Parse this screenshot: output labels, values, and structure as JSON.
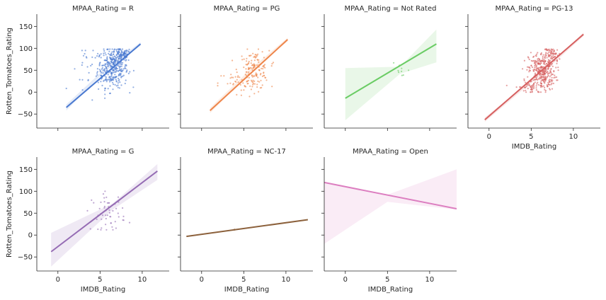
{
  "chart_data": {
    "type": "scatter",
    "facet_variable": "MPAA_Rating",
    "xlabel": "IMDB_Rating",
    "ylabel": "Rotten_Tomatoes_Rating",
    "xlim": [
      -2.5,
      13.2
    ],
    "ylim": [
      -82,
      178
    ],
    "xticks": [
      0,
      5,
      10
    ],
    "yticks": [
      -50,
      0,
      50,
      100,
      150
    ],
    "grid": false,
    "panels": [
      {
        "title": "MPAA_Rating = R",
        "color": "#4878d0",
        "fit": {
          "x": [
            1.0,
            9.8
          ],
          "y": [
            -35,
            110
          ]
        },
        "band": {
          "x": [
            1.0,
            5.5,
            9.8
          ],
          "upper": [
            -28,
            52,
            114
          ],
          "lower": [
            -42,
            46,
            106
          ]
        },
        "clusters": [
          {
            "cx": 6.5,
            "cy": 55,
            "sx": 0.9,
            "sy": 22,
            "n": 320,
            "xr": [
              3,
              9.5
            ],
            "yr": [
              -5,
              98
            ]
          },
          {
            "cx": 7.5,
            "cy": 85,
            "sx": 0.6,
            "sy": 8,
            "n": 90,
            "xr": [
              5.5,
              9.5
            ],
            "yr": [
              60,
              98
            ]
          },
          {
            "cx": 3.8,
            "cy": 40,
            "sx": 1.2,
            "sy": 35,
            "n": 30,
            "xr": [
              1.0,
              6
            ],
            "yr": [
              -35,
              95
            ]
          }
        ]
      },
      {
        "title": "MPAA_Rating = PG",
        "color": "#ee854a",
        "fit": {
          "x": [
            1.0,
            10.2
          ],
          "y": [
            -42,
            120
          ]
        },
        "band": {
          "x": [
            1.0,
            6.0,
            10.2
          ],
          "upper": [
            -36,
            56,
            124
          ],
          "lower": [
            -48,
            50,
            116
          ]
        },
        "clusters": [
          {
            "cx": 6.2,
            "cy": 50,
            "sx": 0.9,
            "sy": 22,
            "n": 150,
            "xr": [
              2.5,
              8.5
            ],
            "yr": [
              -10,
              98
            ]
          },
          {
            "cx": 4.0,
            "cy": 20,
            "sx": 1.0,
            "sy": 15,
            "n": 25,
            "xr": [
              1.8,
              6
            ],
            "yr": [
              -10,
              55
            ]
          }
        ]
      },
      {
        "title": "MPAA_Rating = Not Rated",
        "color": "#6acc64",
        "fit": {
          "x": [
            0.0,
            10.8
          ],
          "y": [
            -14,
            110
          ]
        },
        "band": {
          "x": [
            0.0,
            6.5,
            10.8
          ],
          "upper": [
            55,
            58,
            143
          ],
          "lower": [
            -64,
            42,
            68
          ]
        },
        "clusters": [
          {
            "cx": 6.5,
            "cy": 50,
            "sx": 0.7,
            "sy": 20,
            "n": 10,
            "xr": [
              5.0,
              7.5
            ],
            "yr": [
              15,
              85
            ]
          }
        ]
      },
      {
        "title": "MPAA_Rating = PG-13",
        "color": "#d65f5f",
        "fit": {
          "x": [
            -0.5,
            11.2
          ],
          "y": [
            -63,
            132
          ]
        },
        "band": {
          "x": [
            -0.5,
            6.5,
            11.2
          ],
          "upper": [
            -58,
            50,
            136
          ],
          "lower": [
            -68,
            46,
            128
          ]
        },
        "clusters": [
          {
            "cx": 6.3,
            "cy": 48,
            "sx": 0.8,
            "sy": 22,
            "n": 340,
            "xr": [
              3.5,
              8.5
            ],
            "yr": [
              0,
              98
            ]
          },
          {
            "cx": 4.8,
            "cy": 12,
            "sx": 0.9,
            "sy": 8,
            "n": 45,
            "xr": [
              2.0,
              7.0
            ],
            "yr": [
              0,
              35
            ]
          },
          {
            "cx": 7.5,
            "cy": 85,
            "sx": 0.5,
            "sy": 8,
            "n": 60,
            "xr": [
              6,
              8.5
            ],
            "yr": [
              65,
              98
            ]
          }
        ]
      },
      {
        "title": "MPAA_Rating = G",
        "color": "#956cb4",
        "fit": {
          "x": [
            -0.8,
            11.8
          ],
          "y": [
            -38,
            146
          ]
        },
        "band": {
          "x": [
            -0.8,
            6.5,
            11.8
          ],
          "upper": [
            5,
            72,
            162
          ],
          "lower": [
            -72,
            58,
            126
          ]
        },
        "clusters": [
          {
            "cx": 6.0,
            "cy": 52,
            "sx": 1.0,
            "sy": 22,
            "n": 55,
            "xr": [
              3.5,
              8.5
            ],
            "yr": [
              12,
              100
            ]
          }
        ]
      },
      {
        "title": "MPAA_Rating = NC-17",
        "color": "#8c613c",
        "fit": {
          "x": [
            -1.8,
            12.6
          ],
          "y": [
            -3,
            35
          ]
        },
        "band": {
          "x": [
            -1.8,
            12.6
          ],
          "upper": [
            -2,
            36
          ],
          "lower": [
            -4,
            34
          ]
        },
        "clusters": [
          {
            "cx": 4.0,
            "cy": 12,
            "sx": 0.1,
            "sy": 1,
            "n": 2,
            "xr": [
              3.9,
              4.1
            ],
            "yr": [
              11,
              13
            ]
          }
        ]
      },
      {
        "title": "MPAA_Rating = Open",
        "color": "#dc7ec0",
        "fit": {
          "x": [
            -2.5,
            13.2
          ],
          "y": [
            120,
            60
          ]
        },
        "band": {
          "x": [
            -2.5,
            5.0,
            13.2
          ],
          "upper": [
            122,
            92,
            150
          ],
          "lower": [
            -20,
            76,
            58
          ]
        },
        "clusters": []
      }
    ]
  }
}
